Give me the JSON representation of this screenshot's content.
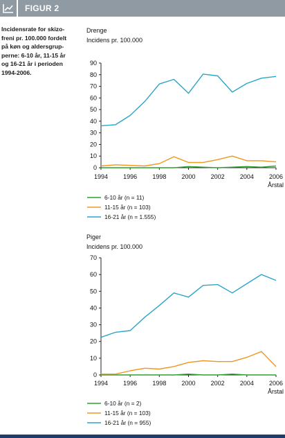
{
  "header": {
    "figure_label": "FIGUR 2",
    "icon": "chart-line-icon"
  },
  "caption": [
    "Incidensrate for skizo-",
    "freni pr. 100.000 fordelt",
    "på køn og aldersgrup-",
    "perne: 6-10 år, 11-15 år",
    "og 16-21 år i perioden",
    "1994-2006."
  ],
  "colors": {
    "green": "#2ca02c",
    "orange": "#f0961e",
    "blue": "#2aa5c8",
    "header": "#8f9aa3",
    "rule": "#1f3a6b"
  },
  "chart_data": [
    {
      "type": "line",
      "title": "Drenge",
      "ylabel": "Incidens pr. 100.000",
      "xlabel": "Årstal",
      "x": [
        1994,
        1995,
        1996,
        1997,
        1998,
        1999,
        2000,
        2001,
        2002,
        2003,
        2004,
        2005,
        2006
      ],
      "x_ticks": [
        "1994",
        "1996",
        "1998",
        "2000",
        "2002",
        "2004",
        "2006"
      ],
      "ylim": [
        0,
        90
      ],
      "y_ticks": [
        "0",
        "10",
        "20",
        "30",
        "40",
        "50",
        "60",
        "70",
        "80",
        "90"
      ],
      "legend_position": "bottom-left",
      "grid": false,
      "series": [
        {
          "name": "6-10 år (n = 11)",
          "color": "#2ca02c",
          "values": [
            0,
            0,
            0,
            0,
            0,
            0,
            1,
            0.5,
            0,
            0.5,
            1,
            0.5,
            1.5
          ]
        },
        {
          "name": "11-15 år (n = 103)",
          "color": "#f0961e",
          "values": [
            1.5,
            2.5,
            2,
            1.5,
            3.5,
            9.5,
            4.5,
            4.5,
            7,
            10,
            6,
            6,
            5
          ]
        },
        {
          "name": "16-21 år (n = 1.555)",
          "color": "#2aa5c8",
          "values": [
            36,
            37,
            45,
            57,
            72,
            76,
            64,
            80.5,
            79,
            65,
            72.5,
            77,
            78.5
          ]
        }
      ]
    },
    {
      "type": "line",
      "title": "Piger",
      "ylabel": "Incidens pr. 100.000",
      "xlabel": "Årstal",
      "x": [
        1994,
        1995,
        1996,
        1997,
        1998,
        1999,
        2000,
        2001,
        2002,
        2003,
        2004,
        2005,
        2006
      ],
      "x_ticks": [
        "1994",
        "1996",
        "1998",
        "2000",
        "2002",
        "2004",
        "2006"
      ],
      "ylim": [
        0,
        70
      ],
      "y_ticks": [
        "0",
        "10",
        "20",
        "30",
        "40",
        "50",
        "60",
        "70"
      ],
      "legend_position": "bottom-left",
      "grid": false,
      "series": [
        {
          "name": "6-10 år (n = 2)",
          "color": "#2ca02c",
          "values": [
            0,
            0,
            0,
            0,
            0,
            0,
            0.5,
            0,
            0,
            0.5,
            0,
            0,
            0
          ]
        },
        {
          "name": "11-15 år (n = 103)",
          "color": "#f0961e",
          "values": [
            0.5,
            0.5,
            2.5,
            4,
            3.5,
            5,
            7.5,
            8.5,
            8,
            8,
            10.5,
            14,
            5
          ]
        },
        {
          "name": "16-21 år (n = 955)",
          "color": "#2aa5c8",
          "values": [
            22.5,
            25.5,
            26.5,
            34.5,
            41.5,
            49,
            46.5,
            53.5,
            54,
            49,
            54.5,
            60,
            56.5
          ]
        }
      ]
    }
  ]
}
